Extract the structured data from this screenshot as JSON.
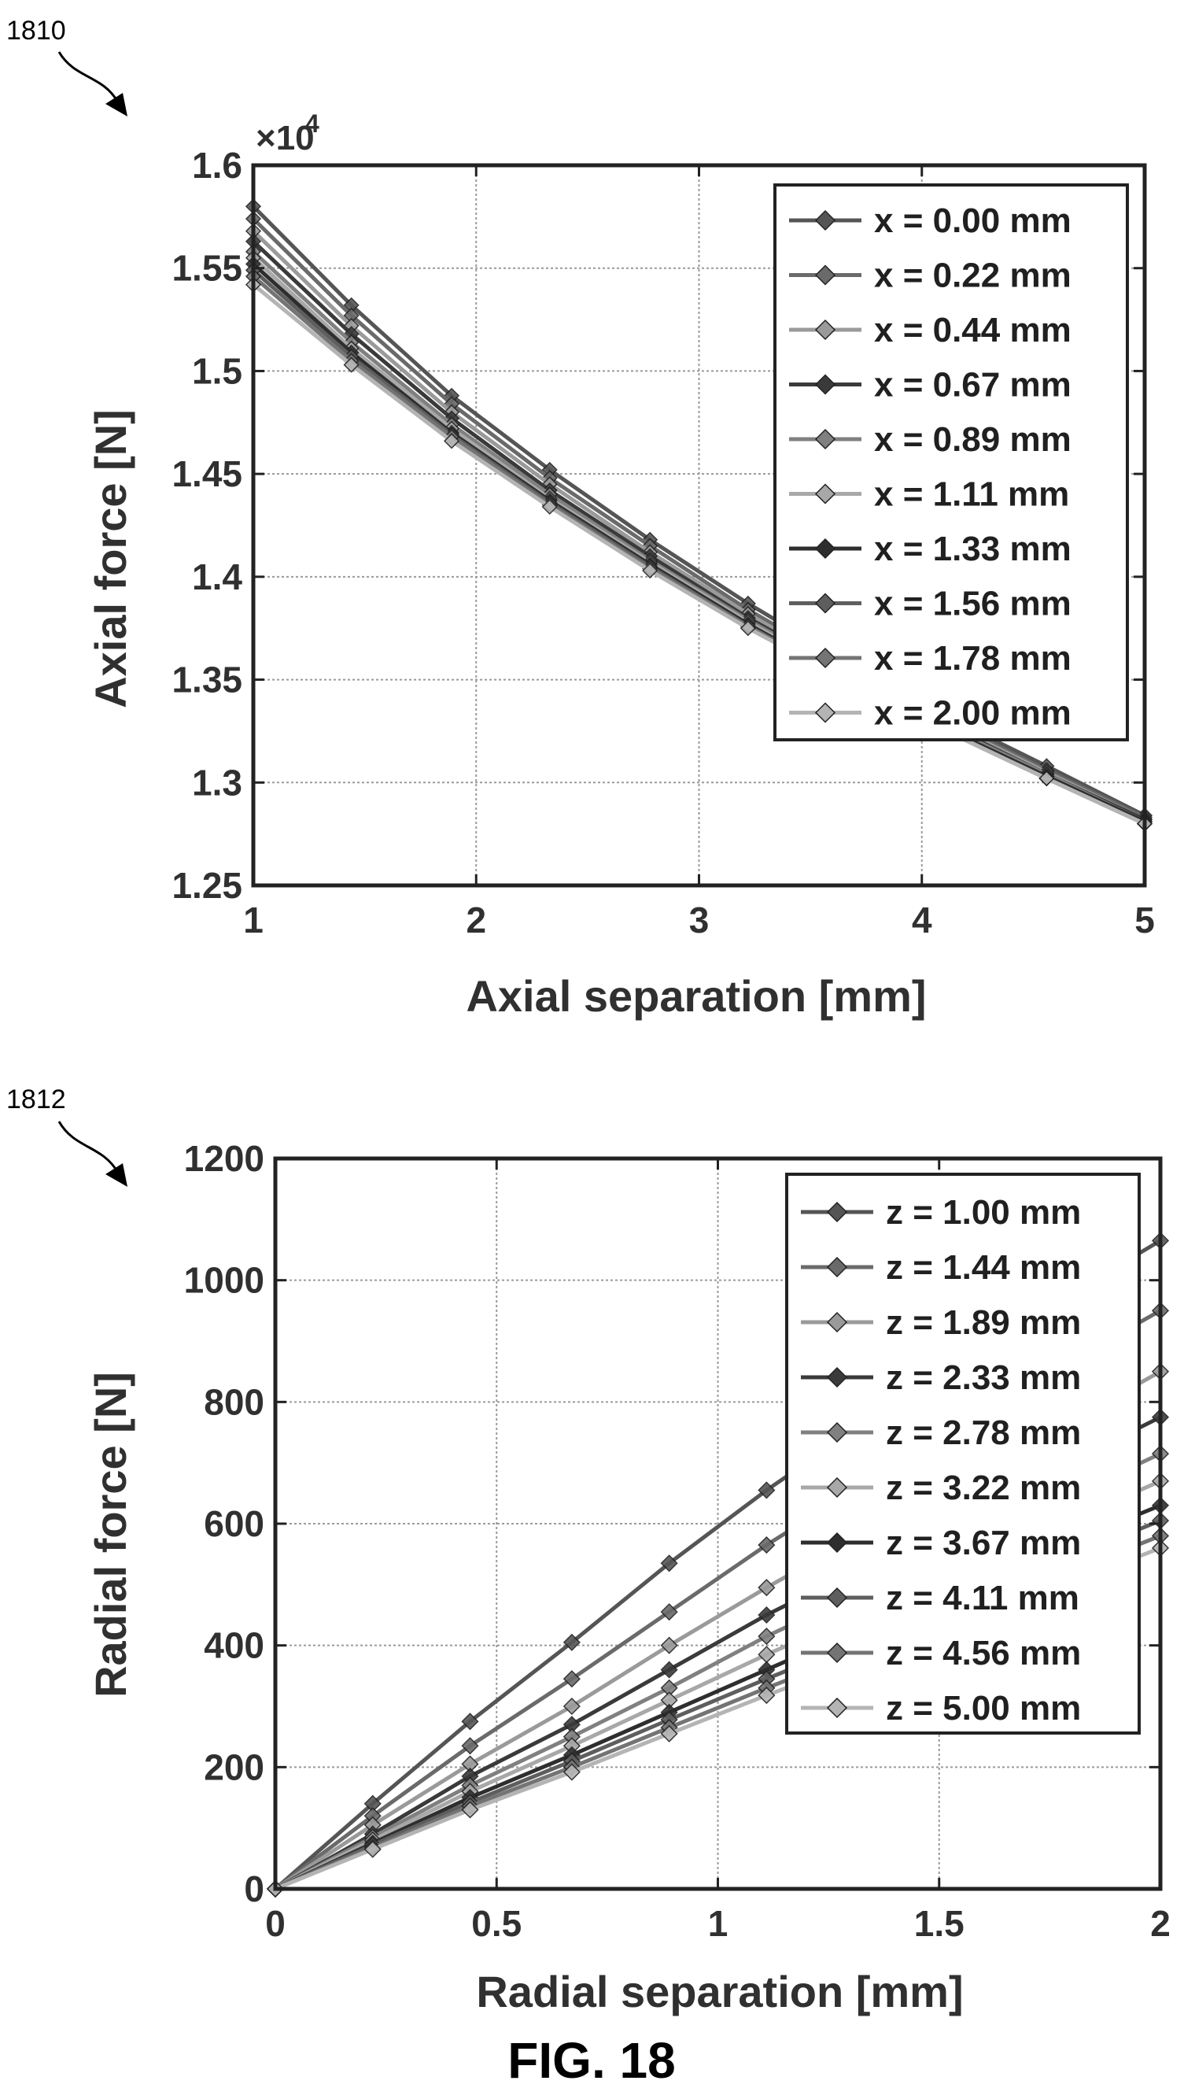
{
  "figure": {
    "ref_top": "1810",
    "ref_bottom": "1812",
    "fig_label": "FIG. 18"
  },
  "chart_data": [
    {
      "type": "line",
      "xlabel": "Axial separation [mm]",
      "ylabel": "Axial force [N]",
      "y_multiplier": "×10",
      "y_multiplier_exp": "4",
      "xlim": [
        1,
        5
      ],
      "ylim": [
        1.25,
        1.6
      ],
      "x_ticks": [
        "1",
        "2",
        "3",
        "4",
        "5"
      ],
      "y_ticks": [
        "1.25",
        "1.3",
        "1.35",
        "1.4",
        "1.45",
        "1.5",
        "1.55",
        "1.6"
      ],
      "grid": true,
      "legend_position": "top-right",
      "x": [
        1.0,
        1.44,
        1.89,
        2.33,
        2.78,
        3.22,
        3.67,
        4.11,
        4.56,
        5.0
      ],
      "series": [
        {
          "name": "x = 0.00 mm",
          "color": "#555555",
          "values": [
            1.58,
            1.532,
            1.488,
            1.452,
            1.418,
            1.387,
            1.358,
            1.332,
            1.308,
            1.284
          ]
        },
        {
          "name": "x = 0.22 mm",
          "color": "#6a6a6a",
          "values": [
            1.574,
            1.527,
            1.484,
            1.448,
            1.415,
            1.384,
            1.356,
            1.33,
            1.306,
            1.283
          ]
        },
        {
          "name": "x = 0.44 mm",
          "color": "#9a9a9a",
          "values": [
            1.568,
            1.522,
            1.48,
            1.445,
            1.412,
            1.382,
            1.354,
            1.329,
            1.305,
            1.282
          ]
        },
        {
          "name": "x = 0.67 mm",
          "color": "#3a3a3a",
          "values": [
            1.563,
            1.518,
            1.477,
            1.442,
            1.41,
            1.38,
            1.353,
            1.328,
            1.304,
            1.282
          ]
        },
        {
          "name": "x = 0.89 mm",
          "color": "#808080",
          "values": [
            1.558,
            1.514,
            1.474,
            1.44,
            1.408,
            1.379,
            1.352,
            1.327,
            1.304,
            1.281
          ]
        },
        {
          "name": "x = 1.11 mm",
          "color": "#a8a8a8",
          "values": [
            1.555,
            1.511,
            1.472,
            1.438,
            1.407,
            1.378,
            1.351,
            1.326,
            1.303,
            1.281
          ]
        },
        {
          "name": "x = 1.33 mm",
          "color": "#2e2e2e",
          "values": [
            1.552,
            1.509,
            1.47,
            1.437,
            1.406,
            1.377,
            1.35,
            1.326,
            1.303,
            1.281
          ]
        },
        {
          "name": "x = 1.56 mm",
          "color": "#5e5e5e",
          "values": [
            1.549,
            1.507,
            1.469,
            1.436,
            1.405,
            1.376,
            1.35,
            1.325,
            1.302,
            1.28
          ]
        },
        {
          "name": "x = 1.78 mm",
          "color": "#747474",
          "values": [
            1.546,
            1.505,
            1.468,
            1.435,
            1.404,
            1.376,
            1.349,
            1.325,
            1.302,
            1.28
          ]
        },
        {
          "name": "x = 2.00 mm",
          "color": "#b4b4b4",
          "values": [
            1.542,
            1.503,
            1.466,
            1.434,
            1.403,
            1.375,
            1.349,
            1.325,
            1.302,
            1.28
          ]
        }
      ]
    },
    {
      "type": "line",
      "xlabel": "Radial separation [mm]",
      "ylabel": "Radial force [N]",
      "xlim": [
        0,
        2
      ],
      "ylim": [
        0,
        1200
      ],
      "x_ticks": [
        "0",
        "0.5",
        "1",
        "1.5",
        "2"
      ],
      "y_ticks": [
        "0",
        "200",
        "400",
        "600",
        "800",
        "1000",
        "1200"
      ],
      "grid": true,
      "legend_position": "top-right",
      "x": [
        0.0,
        0.22,
        0.44,
        0.67,
        0.89,
        1.11,
        1.33,
        1.56,
        1.78,
        2.0
      ],
      "series": [
        {
          "name": "z = 1.00 mm",
          "color": "#555555",
          "values": [
            0,
            140,
            275,
            405,
            535,
            655,
            765,
            870,
            970,
            1065
          ]
        },
        {
          "name": "z = 1.44 mm",
          "color": "#6a6a6a",
          "values": [
            0,
            120,
            235,
            345,
            455,
            565,
            665,
            765,
            860,
            950
          ]
        },
        {
          "name": "z = 1.89 mm",
          "color": "#9a9a9a",
          "values": [
            0,
            105,
            205,
            300,
            400,
            495,
            585,
            675,
            760,
            850
          ]
        },
        {
          "name": "z = 2.33 mm",
          "color": "#3a3a3a",
          "values": [
            0,
            90,
            185,
            270,
            360,
            450,
            530,
            615,
            695,
            775
          ]
        },
        {
          "name": "z = 2.78 mm",
          "color": "#808080",
          "values": [
            0,
            85,
            170,
            250,
            330,
            415,
            490,
            565,
            640,
            715
          ]
        },
        {
          "name": "z = 3.22 mm",
          "color": "#a8a8a8",
          "values": [
            0,
            80,
            160,
            235,
            310,
            385,
            455,
            525,
            600,
            670
          ]
        },
        {
          "name": "z = 3.67 mm",
          "color": "#2e2e2e",
          "values": [
            0,
            75,
            150,
            220,
            290,
            360,
            430,
            495,
            565,
            630
          ]
        },
        {
          "name": "z = 4.11 mm",
          "color": "#5e5e5e",
          "values": [
            0,
            72,
            142,
            210,
            278,
            345,
            410,
            475,
            540,
            605
          ]
        },
        {
          "name": "z = 4.56 mm",
          "color": "#747474",
          "values": [
            0,
            68,
            136,
            200,
            265,
            330,
            392,
            455,
            517,
            580
          ]
        },
        {
          "name": "z = 5.00 mm",
          "color": "#b4b4b4",
          "values": [
            0,
            65,
            130,
            192,
            255,
            318,
            378,
            438,
            498,
            560
          ]
        }
      ]
    }
  ]
}
